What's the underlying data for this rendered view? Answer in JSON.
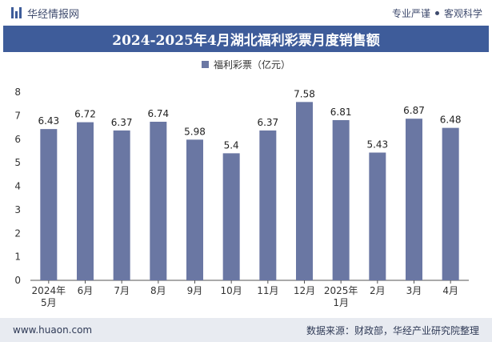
{
  "header": {
    "brand": "华经情报网",
    "tag1": "专业严谨",
    "tag2": "客观科学"
  },
  "chart_data": {
    "type": "bar",
    "title": "2024-2025年4月湖北福利彩票月度销售额",
    "categories": [
      "2024年\n5月",
      "6月",
      "7月",
      "8月",
      "9月",
      "10月",
      "11月",
      "12月",
      "2025年\n1月",
      "2月",
      "3月",
      "4月"
    ],
    "series": [
      {
        "name": "福利彩票（亿元）",
        "values": [
          6.43,
          6.72,
          6.37,
          6.74,
          5.98,
          5.4,
          6.37,
          7.58,
          6.81,
          5.43,
          6.87,
          6.48
        ]
      }
    ],
    "ylim": [
      0,
      8
    ],
    "yticks": [
      0,
      1,
      2,
      3,
      4,
      5,
      6,
      7,
      8
    ],
    "xlabel": "",
    "ylabel": "",
    "legend_position": "top",
    "grid": false,
    "bar_color": "#6a77a3"
  },
  "footer": {
    "website": "www.huaon.com",
    "source": "数据来源：财政部，华经产业研究院整理"
  }
}
